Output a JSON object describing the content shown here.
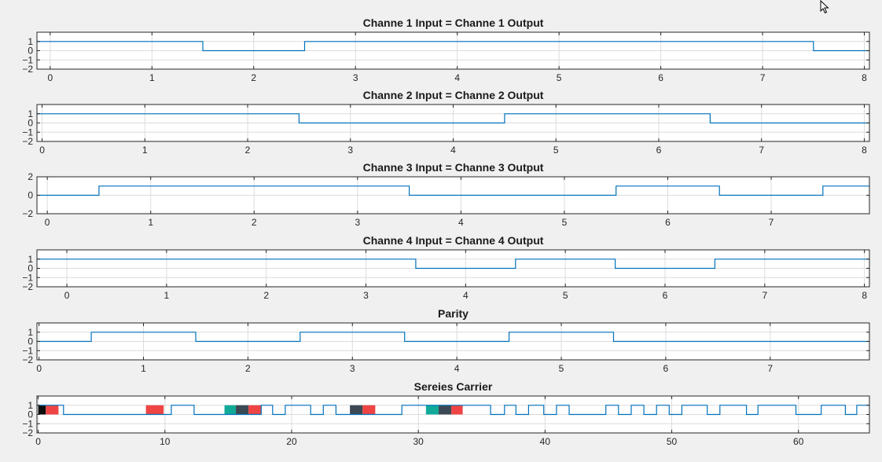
{
  "chart_data": [
    {
      "type": "line",
      "title": "Channe 1 Input = Channe 1 Output",
      "xlim": [
        -0.13,
        8.05
      ],
      "ylim": [
        -2,
        2
      ],
      "xticks": [
        0,
        1,
        2,
        3,
        4,
        5,
        6,
        7,
        8
      ],
      "yticks": [
        1,
        0,
        -1,
        -2
      ],
      "grid": true,
      "series": [
        {
          "color": "#0072bd",
          "x": [
            -0.13,
            1.5,
            1.5,
            2.5,
            2.5,
            7.5,
            7.5,
            8.05
          ],
          "y": [
            1,
            1,
            0,
            0,
            1,
            1,
            0,
            0
          ]
        }
      ]
    },
    {
      "type": "line",
      "title": "Channe 2 Input = Channe 2 Output",
      "xlim": [
        -0.05,
        8.05
      ],
      "ylim": [
        -2,
        2
      ],
      "xticks": [
        0,
        1,
        2,
        3,
        4,
        5,
        6,
        7,
        8
      ],
      "yticks": [
        1,
        0,
        -1,
        -2
      ],
      "grid": true,
      "series": [
        {
          "color": "#0072bd",
          "x": [
            -0.05,
            2.5,
            2.5,
            4.5,
            4.5,
            6.5,
            6.5,
            8.05
          ],
          "y": [
            1,
            1,
            0,
            0,
            1,
            1,
            0,
            0
          ]
        }
      ]
    },
    {
      "type": "line",
      "title": "Channe 3 Input = Channe 3 Output",
      "xlim": [
        -0.1,
        7.95
      ],
      "ylim": [
        -2,
        2
      ],
      "xticks": [
        0,
        1,
        2,
        3,
        4,
        5,
        6,
        7
      ],
      "yticks": [
        2,
        0,
        -2
      ],
      "grid": true,
      "series": [
        {
          "color": "#0072bd",
          "x": [
            -0.1,
            0.5,
            0.5,
            3.5,
            3.5,
            5.5,
            5.5,
            6.5,
            6.5,
            7.5,
            7.5,
            7.95
          ],
          "y": [
            0,
            0,
            1,
            1,
            0,
            0,
            1,
            1,
            0,
            0,
            1,
            1
          ]
        }
      ]
    },
    {
      "type": "line",
      "title": "Channe 4 Input = Channe 4 Output",
      "xlim": [
        -0.3,
        8.05
      ],
      "ylim": [
        -2,
        2
      ],
      "xticks": [
        0,
        1,
        2,
        3,
        4,
        5,
        6,
        7,
        8
      ],
      "yticks": [
        1,
        0,
        -1,
        -2
      ],
      "grid": true,
      "series": [
        {
          "color": "#0072bd",
          "x": [
            -0.3,
            3.5,
            3.5,
            4.5,
            4.5,
            5.5,
            5.5,
            6.5,
            6.5,
            8.05
          ],
          "y": [
            1,
            1,
            0,
            0,
            1,
            1,
            0,
            0,
            1,
            1
          ]
        }
      ]
    },
    {
      "type": "line",
      "title": "Parity",
      "xlim": [
        -0.02,
        7.95
      ],
      "ylim": [
        -2,
        2
      ],
      "xticks": [
        0,
        1,
        2,
        3,
        4,
        5,
        6,
        7
      ],
      "yticks": [
        1,
        0,
        -1,
        -2
      ],
      "grid": true,
      "series": [
        {
          "color": "#0072bd",
          "x": [
            -0.02,
            0.5,
            0.5,
            1.5,
            1.5,
            2.5,
            2.5,
            3.5,
            3.5,
            4.5,
            4.5,
            5.5,
            5.5,
            7.95
          ],
          "y": [
            0,
            0,
            1,
            1,
            0,
            0,
            1,
            1,
            0,
            0,
            1,
            1,
            0,
            0
          ]
        }
      ]
    },
    {
      "type": "line",
      "title": "Sereies Carrier",
      "xlim": [
        -0.1,
        65.6
      ],
      "ylim": [
        -2,
        2
      ],
      "xticks": [
        0,
        10,
        20,
        30,
        40,
        50,
        60
      ],
      "yticks": [
        1,
        0,
        -1,
        -2
      ],
      "grid": true,
      "series": [
        {
          "color": "#0072bd",
          "x": [
            -0.1,
            2,
            2,
            10.5,
            10.5,
            12.3,
            12.3,
            17.6,
            17.6,
            18.5,
            18.5,
            19.5,
            19.5,
            21.5,
            21.5,
            22.5,
            22.5,
            23.5,
            23.5,
            28.7,
            28.7,
            35.7,
            35.7,
            36.8,
            36.8,
            37.7,
            37.7,
            38.7,
            38.7,
            39.9,
            39.9,
            40.9,
            40.9,
            41.9,
            41.9,
            44.8,
            44.8,
            45.8,
            45.8,
            46.8,
            46.8,
            47.8,
            47.8,
            48.8,
            48.8,
            49.8,
            49.8,
            50.8,
            50.8,
            52.8,
            52.8,
            53.8,
            53.8,
            55.9,
            55.9,
            56.8,
            56.8,
            59.8,
            59.8,
            61.8,
            61.8,
            63.7,
            63.7,
            64.6,
            64.6,
            65.6
          ],
          "y": [
            1,
            1,
            0,
            0,
            1,
            1,
            0,
            0,
            1,
            1,
            0,
            0,
            1,
            1,
            0,
            0,
            1,
            1,
            0,
            0,
            1,
            1,
            0,
            0,
            1,
            1,
            0,
            0,
            1,
            1,
            0,
            0,
            1,
            1,
            0,
            0,
            1,
            1,
            0,
            0,
            1,
            1,
            0,
            0,
            1,
            1,
            0,
            0,
            1,
            1,
            0,
            0,
            1,
            1,
            0,
            0,
            1,
            1,
            0,
            0,
            1,
            1,
            0,
            0,
            1,
            1
          ]
        }
      ],
      "segments": [
        {
          "x": 0.0,
          "x2": 0.6,
          "color": "#0d0d0d"
        },
        {
          "x": 0.6,
          "x2": 1.6,
          "color": "#ee4444"
        },
        {
          "x": 8.5,
          "x2": 9.9,
          "color": "#ee4444"
        },
        {
          "x": 14.7,
          "x2": 15.6,
          "color": "#11aa99"
        },
        {
          "x": 15.6,
          "x2": 16.6,
          "color": "#3c4853"
        },
        {
          "x": 16.6,
          "x2": 17.6,
          "color": "#ee4444"
        },
        {
          "x": 24.6,
          "x2": 25.6,
          "color": "#3c4853"
        },
        {
          "x": 25.6,
          "x2": 26.6,
          "color": "#ee4444"
        },
        {
          "x": 30.6,
          "x2": 31.6,
          "color": "#11aa99"
        },
        {
          "x": 31.6,
          "x2": 32.6,
          "color": "#3c4853"
        },
        {
          "x": 32.6,
          "x2": 33.5,
          "color": "#ee4444"
        }
      ]
    }
  ],
  "cursor": {
    "icon": "mouse-pointer-icon"
  }
}
